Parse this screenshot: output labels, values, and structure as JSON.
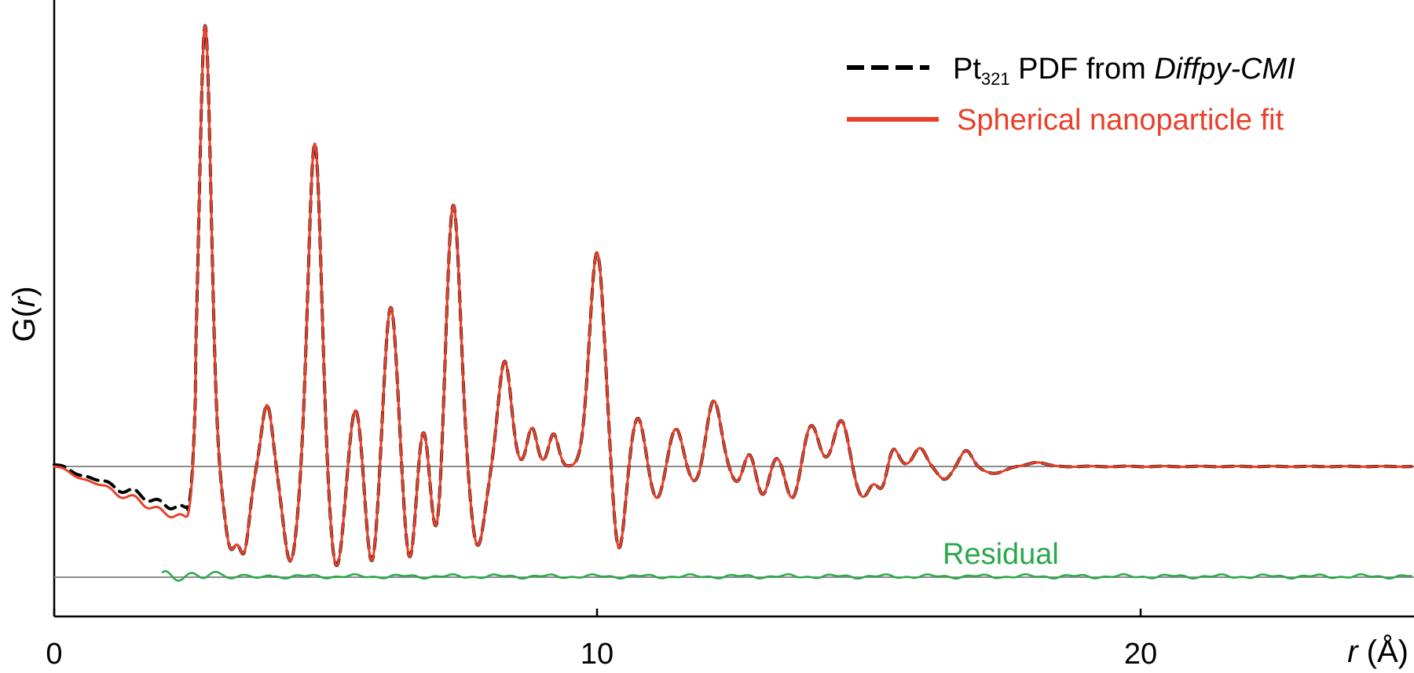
{
  "chart_data": {
    "type": "line",
    "xlabel_italic": "r",
    "xlabel_unit": "(Å)",
    "ylabel_prefix": "G(",
    "ylabel_italic": "r",
    "ylabel_suffix": ")",
    "xlim": [
      0,
      25
    ],
    "x_ticks": [
      0,
      10,
      20
    ],
    "x_tick_labels": [
      "0",
      "10",
      "20"
    ],
    "ylim": [
      -1.3,
      4.3
    ],
    "grid": false,
    "legend_position": "top-right",
    "colors": {
      "data": "#000000",
      "fit": "#e8412a",
      "residual": "#2aa84a",
      "reference": "#8c8c8c"
    },
    "legend": {
      "data_label_main": "Pt",
      "data_label_sub": "321",
      "data_label_mid": " PDF from ",
      "data_label_italic": "Diffpy-CMI",
      "fit_label": "Spherical nanoparticle fit"
    },
    "residual_label": "Residual",
    "reference_levels": {
      "data": 0,
      "residual": -1.0
    },
    "peaks": [
      {
        "r": 2.78,
        "height": 4.1,
        "width": 0.11
      },
      {
        "r": 3.92,
        "height": 0.6,
        "width": 0.1
      },
      {
        "r": 4.8,
        "height": 2.95,
        "width": 0.12
      },
      {
        "r": 5.55,
        "height": 0.55,
        "width": 0.11
      },
      {
        "r": 6.2,
        "height": 1.45,
        "width": 0.12
      },
      {
        "r": 6.8,
        "height": 0.42,
        "width": 0.1
      },
      {
        "r": 7.35,
        "height": 2.4,
        "width": 0.13
      },
      {
        "r": 8.3,
        "height": 0.95,
        "width": 0.12
      },
      {
        "r": 8.8,
        "height": 0.35,
        "width": 0.09
      },
      {
        "r": 9.2,
        "height": 0.3,
        "width": 0.09
      },
      {
        "r": 10.0,
        "height": 1.95,
        "width": 0.14
      },
      {
        "r": 10.75,
        "height": 0.45,
        "width": 0.12
      },
      {
        "r": 11.45,
        "height": 0.35,
        "width": 0.12
      },
      {
        "r": 12.15,
        "height": 0.6,
        "width": 0.13
      },
      {
        "r": 12.8,
        "height": 0.18,
        "width": 0.11
      },
      {
        "r": 13.3,
        "height": 0.12,
        "width": 0.11
      },
      {
        "r": 13.95,
        "height": 0.38,
        "width": 0.13
      },
      {
        "r": 14.5,
        "height": 0.42,
        "width": 0.13
      },
      {
        "r": 15.45,
        "height": 0.18,
        "width": 0.1
      },
      {
        "r": 15.95,
        "height": 0.17,
        "width": 0.11
      },
      {
        "r": 16.8,
        "height": 0.15,
        "width": 0.11
      },
      {
        "r": 18.1,
        "height": 0.04,
        "width": 0.15
      }
    ],
    "troughs": [
      {
        "r": 3.25,
        "depth": -0.65,
        "width": 0.11
      },
      {
        "r": 3.5,
        "depth": -0.7,
        "width": 0.1
      },
      {
        "r": 4.35,
        "depth": -0.85,
        "width": 0.13
      },
      {
        "r": 5.2,
        "depth": -0.9,
        "width": 0.13
      },
      {
        "r": 5.85,
        "depth": -0.88,
        "width": 0.11
      },
      {
        "r": 6.55,
        "depth": -0.85,
        "width": 0.11
      },
      {
        "r": 7.05,
        "depth": -0.7,
        "width": 0.11
      },
      {
        "r": 7.8,
        "depth": -0.72,
        "width": 0.13
      },
      {
        "r": 10.4,
        "depth": -0.78,
        "width": 0.11
      },
      {
        "r": 11.1,
        "depth": -0.3,
        "width": 0.12
      },
      {
        "r": 11.8,
        "depth": -0.15,
        "width": 0.12
      },
      {
        "r": 12.6,
        "depth": -0.16,
        "width": 0.12
      },
      {
        "r": 13.05,
        "depth": -0.28,
        "width": 0.12
      },
      {
        "r": 13.6,
        "depth": -0.3,
        "width": 0.12
      },
      {
        "r": 14.9,
        "depth": -0.28,
        "width": 0.14
      },
      {
        "r": 15.25,
        "depth": -0.2,
        "width": 0.1
      },
      {
        "r": 16.4,
        "depth": -0.12,
        "width": 0.12
      },
      {
        "r": 17.3,
        "depth": -0.06,
        "width": 0.2
      }
    ]
  }
}
